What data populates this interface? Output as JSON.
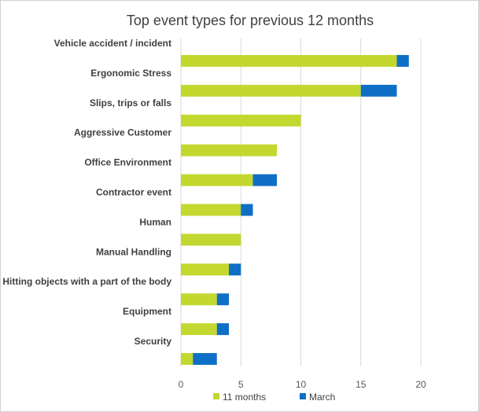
{
  "chart_data": {
    "type": "bar",
    "orientation": "horizontal",
    "stacked": true,
    "title": "Top event types for previous 12 months",
    "categories": [
      "Vehicle accident / incident",
      "Ergonomic Stress",
      "Slips, trips or falls",
      "Aggressive Customer",
      "Office Environment",
      "Contractor event",
      "Human",
      "Manual Handling",
      "Hitting objects with a part of the body",
      "Equipment",
      "Security"
    ],
    "series": [
      {
        "name": "11 months",
        "color": "#c3d82e",
        "values": [
          18,
          15,
          10,
          8,
          6,
          5,
          5,
          4,
          3,
          3,
          1
        ]
      },
      {
        "name": "March",
        "color": "#0f6fc6",
        "values": [
          1,
          3,
          0,
          0,
          2,
          1,
          0,
          1,
          1,
          1,
          2
        ]
      }
    ],
    "xlim": [
      0,
      20
    ],
    "xticks": [
      "0",
      "5",
      "10",
      "15",
      "20"
    ],
    "grid": true,
    "legend": "bottom"
  }
}
